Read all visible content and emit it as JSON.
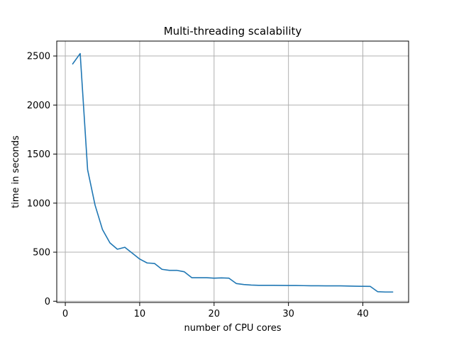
{
  "chart_data": {
    "type": "line",
    "title": "Multi-threading scalability",
    "xlabel": "number of CPU cores",
    "ylabel": "time in seconds",
    "xlim": [
      -1.15,
      46.15
    ],
    "ylim": [
      -12.5,
      2652
    ],
    "xticks": [
      0,
      10,
      20,
      30,
      40
    ],
    "yticks": [
      0,
      500,
      1000,
      1500,
      2000,
      2500
    ],
    "grid": true,
    "legend": "none",
    "colors": {
      "line": "#1f77b4",
      "grid": "#b0b0b0",
      "axes": "#000000"
    },
    "series": [
      {
        "x": [
          1,
          2,
          3,
          4,
          5,
          6,
          7,
          8,
          9,
          10,
          11,
          12,
          13,
          14,
          15,
          16,
          17,
          18,
          19,
          20,
          21,
          22,
          23,
          24,
          25,
          26,
          27,
          28,
          29,
          30,
          31,
          32,
          33,
          34,
          35,
          36,
          37,
          38,
          39,
          40,
          41,
          42,
          43,
          44
        ],
        "values": [
          2420,
          2525,
          1340,
          980,
          730,
          595,
          530,
          550,
          490,
          430,
          390,
          385,
          325,
          315,
          315,
          300,
          240,
          240,
          240,
          235,
          238,
          235,
          180,
          170,
          165,
          162,
          162,
          162,
          161,
          160,
          160,
          159,
          158,
          158,
          157,
          157,
          157,
          155,
          153,
          152,
          151,
          97,
          94,
          94
        ]
      }
    ]
  }
}
